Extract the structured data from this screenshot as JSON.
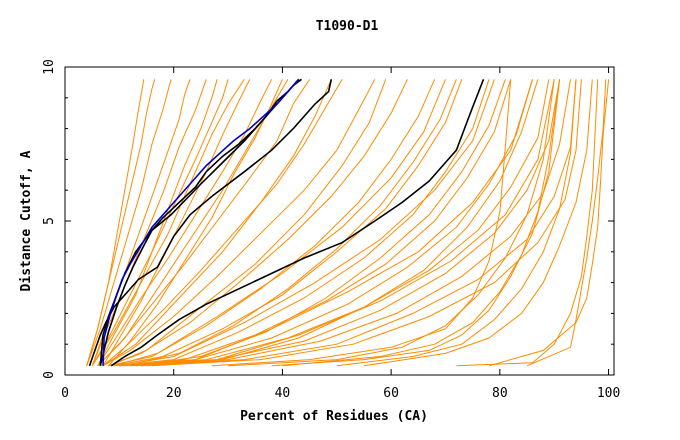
{
  "chart_data": {
    "type": "line",
    "title": "T1090-D1",
    "xlabel": "Percent of Residues (CA)",
    "ylabel": "Distance Cutoff, A",
    "xlim": [
      0,
      101
    ],
    "ylim": [
      0,
      10
    ],
    "x_ticks": [
      0,
      20,
      40,
      60,
      80,
      100
    ],
    "y_ticks": [
      0,
      5,
      10
    ],
    "grid": false,
    "legend": "none",
    "colors": {
      "models": "#ff8c00",
      "highlight_black": "#000000",
      "highlight_blue": "#0000cd"
    },
    "series": [
      {
        "color": "#ff8c00",
        "x": [
          4,
          6,
          8,
          10,
          12,
          14,
          15,
          16,
          16.5
        ],
        "y": [
          0.3,
          1.5,
          3,
          4.5,
          6,
          7.5,
          8.5,
          9.3,
          9.6
        ]
      },
      {
        "color": "#ff8c00",
        "x": [
          5,
          7,
          10,
          13,
          16,
          19,
          21,
          22,
          23
        ],
        "y": [
          0.3,
          1.3,
          2.8,
          4.3,
          5.8,
          7.3,
          8.3,
          9.1,
          9.6
        ]
      },
      {
        "color": "#ff8c00",
        "x": [
          5,
          8,
          12,
          16,
          20,
          24,
          27,
          29,
          30
        ],
        "y": [
          0.3,
          1.2,
          2.6,
          4,
          5.5,
          7,
          8.2,
          9,
          9.6
        ]
      },
      {
        "color": "#ff8c00",
        "x": [
          6,
          9,
          14,
          19,
          24,
          29,
          33,
          36,
          38
        ],
        "y": [
          0.3,
          1.1,
          2.5,
          3.8,
          5.2,
          6.6,
          7.8,
          8.9,
          9.6
        ]
      },
      {
        "color": "#ff8c00",
        "x": [
          6,
          10,
          16,
          22,
          28,
          34,
          39,
          42,
          45
        ],
        "y": [
          0.3,
          1.0,
          2.3,
          3.6,
          5,
          6.4,
          7.6,
          8.8,
          9.6
        ]
      },
      {
        "color": "#ff8c00",
        "x": [
          7,
          11,
          18,
          25,
          32,
          39,
          44,
          48,
          51
        ],
        "y": [
          0.3,
          0.9,
          2.1,
          3.4,
          4.8,
          6.2,
          7.5,
          8.7,
          9.6
        ]
      },
      {
        "color": "#ff8c00",
        "x": [
          7,
          12,
          20,
          28,
          36,
          44,
          50,
          54,
          57
        ],
        "y": [
          0.3,
          0.8,
          1.9,
          3.2,
          4.6,
          6,
          7.3,
          8.6,
          9.6
        ]
      },
      {
        "color": "#ff8c00",
        "x": [
          8,
          14,
          23,
          32,
          41,
          49,
          55,
          60,
          63
        ],
        "y": [
          0.3,
          0.7,
          1.7,
          3,
          4.4,
          5.8,
          7.1,
          8.5,
          9.6
        ]
      },
      {
        "color": "#ff8c00",
        "x": [
          8,
          16,
          26,
          36,
          46,
          54,
          60,
          65,
          68
        ],
        "y": [
          0.3,
          0.6,
          1.6,
          2.8,
          4.2,
          5.6,
          7,
          8.4,
          9.6
        ]
      },
      {
        "color": "#ff8c00",
        "x": [
          9,
          18,
          29,
          40,
          50,
          59,
          65,
          70,
          73
        ],
        "y": [
          0.3,
          0.6,
          1.5,
          2.6,
          4,
          5.4,
          6.8,
          8.2,
          9.6
        ]
      },
      {
        "color": "#ff8c00",
        "x": [
          9,
          20,
          32,
          44,
          55,
          64,
          70,
          75,
          78
        ],
        "y": [
          0.3,
          0.5,
          1.4,
          2.5,
          3.8,
          5.2,
          6.6,
          8,
          9.6
        ]
      },
      {
        "color": "#ff8c00",
        "x": [
          10,
          22,
          35,
          48,
          59,
          68,
          74,
          79,
          82
        ],
        "y": [
          0.3,
          0.5,
          1.3,
          2.4,
          3.6,
          5,
          6.4,
          7.9,
          9.6
        ]
      },
      {
        "color": "#ff8c00",
        "x": [
          10,
          24,
          38,
          52,
          63,
          72,
          78,
          83,
          86
        ],
        "y": [
          0.3,
          0.5,
          1.2,
          2.3,
          3.5,
          4.8,
          6.2,
          7.8,
          9.6
        ]
      },
      {
        "color": "#ff8c00",
        "x": [
          11,
          26,
          41,
          55,
          67,
          76,
          82,
          87,
          89
        ],
        "y": [
          0.3,
          0.5,
          1.2,
          2.2,
          3.4,
          4.7,
          6.1,
          7.7,
          9.6
        ]
      },
      {
        "color": "#ff8c00",
        "x": [
          12,
          28,
          44,
          58,
          70,
          79,
          85,
          89,
          91
        ],
        "y": [
          0.3,
          0.5,
          1.1,
          2.1,
          3.3,
          4.6,
          6,
          7.6,
          9.6
        ]
      },
      {
        "color": "#ff8c00",
        "x": [
          13,
          30,
          47,
          61,
          73,
          82,
          88,
          91,
          93
        ],
        "y": [
          0.3,
          0.5,
          1.1,
          2.0,
          3.2,
          4.5,
          5.9,
          7.5,
          9.6
        ]
      },
      {
        "color": "#ff8c00",
        "x": [
          14,
          33,
          50,
          64,
          76,
          85,
          90,
          93,
          94
        ],
        "y": [
          0.3,
          0.5,
          1.0,
          2.0,
          3.1,
          4.4,
          5.8,
          7.4,
          9.6
        ]
      },
      {
        "color": "#ff8c00",
        "x": [
          16,
          36,
          53,
          67,
          79,
          87,
          92,
          94,
          95
        ],
        "y": [
          0.3,
          0.5,
          1.0,
          1.9,
          3.0,
          4.3,
          5.7,
          7.3,
          9.6
        ]
      },
      {
        "color": "#ff8c00",
        "x": [
          5,
          9,
          14,
          19,
          23,
          27,
          30,
          33
        ],
        "y": [
          0.3,
          1.4,
          3,
          4.6,
          6.2,
          7.8,
          8.8,
          9.6
        ]
      },
      {
        "color": "#ff8c00",
        "x": [
          6,
          11,
          17,
          23,
          29,
          34,
          38,
          41
        ],
        "y": [
          0.3,
          1.2,
          2.8,
          4.4,
          6,
          7.5,
          8.7,
          9.6
        ]
      },
      {
        "color": "#ff8c00",
        "x": [
          7,
          13,
          21,
          29,
          36,
          42,
          46,
          49
        ],
        "y": [
          0.3,
          1.0,
          2.5,
          4.0,
          5.6,
          7.1,
          8.4,
          9.6
        ]
      },
      {
        "color": "#ff8c00",
        "x": [
          8,
          15,
          25,
          35,
          44,
          51,
          56,
          59
        ],
        "y": [
          0.3,
          0.8,
          2.2,
          3.6,
          5.2,
          6.8,
          8.2,
          9.6
        ]
      },
      {
        "color": "#ff8c00",
        "x": [
          9,
          17,
          28,
          40,
          51,
          60,
          66,
          70
        ],
        "y": [
          0.3,
          0.7,
          1.9,
          3.3,
          4.8,
          6.4,
          7.9,
          9.6
        ]
      },
      {
        "color": "#ff8c00",
        "x": [
          10,
          20,
          33,
          46,
          58,
          68,
          75,
          79
        ],
        "y": [
          0.3,
          0.6,
          1.7,
          3.0,
          4.4,
          6,
          7.6,
          9.6
        ]
      },
      {
        "color": "#ff8c00",
        "x": [
          12,
          24,
          38,
          52,
          65,
          75,
          82,
          86
        ],
        "y": [
          0.3,
          0.5,
          1.5,
          2.7,
          4.0,
          5.6,
          7.3,
          9.6
        ]
      },
      {
        "color": "#ff8c00",
        "x": [
          14,
          28,
          43,
          58,
          71,
          81,
          87,
          90
        ],
        "y": [
          0.3,
          0.5,
          1.3,
          2.4,
          3.7,
          5.2,
          7.0,
          9.6
        ]
      },
      {
        "color": "#ff8c00",
        "x": [
          4,
          6,
          8,
          9.5,
          11,
          12.5,
          13.5,
          14.5
        ],
        "y": [
          0.3,
          1.5,
          3,
          4.5,
          6,
          7.5,
          8.6,
          9.6
        ]
      },
      {
        "color": "#ff8c00",
        "x": [
          4,
          6.5,
          9,
          11.5,
          14,
          16,
          18,
          19.5
        ],
        "y": [
          0.3,
          1.5,
          3,
          4.5,
          6,
          7.5,
          8.6,
          9.6
        ]
      },
      {
        "color": "#ff8c00",
        "x": [
          5,
          7.5,
          11,
          14.5,
          18,
          21,
          24,
          26
        ],
        "y": [
          0.3,
          1.4,
          2.9,
          4.4,
          5.9,
          7.4,
          8.6,
          9.6
        ]
      },
      {
        "color": "#ff8c00",
        "x": [
          30,
          50,
          62,
          70,
          76,
          81,
          85,
          88,
          90
        ],
        "y": [
          0.3,
          0.5,
          0.9,
          1.6,
          2.6,
          3.8,
          5.2,
          7,
          9.6
        ]
      },
      {
        "color": "#ff8c00",
        "x": [
          40,
          58,
          68,
          75,
          80,
          84,
          87,
          89,
          91
        ],
        "y": [
          0.3,
          0.6,
          1.0,
          1.7,
          2.7,
          3.9,
          5.3,
          7.1,
          9.6
        ]
      },
      {
        "color": "#ff8c00",
        "x": [
          50,
          64,
          73,
          79,
          84,
          88,
          91,
          93,
          94
        ],
        "y": [
          0.3,
          0.6,
          1.0,
          1.8,
          2.8,
          4.0,
          5.4,
          7.2,
          9.6
        ]
      },
      {
        "color": "#ff8c00",
        "x": [
          27,
          45,
          60,
          70,
          75,
          78,
          80,
          81,
          82
        ],
        "y": [
          0.3,
          0.5,
          0.9,
          1.5,
          2.5,
          3.7,
          5.3,
          7.4,
          9.6
        ]
      },
      {
        "color": "#ff8c00",
        "x": [
          55,
          70,
          78,
          84,
          88,
          91,
          94,
          96,
          97
        ],
        "y": [
          0.3,
          0.7,
          1.2,
          2.0,
          3.0,
          4.2,
          5.6,
          7.3,
          9.6
        ]
      },
      {
        "color": "#ff8c00",
        "x": [
          72,
          86,
          90,
          93,
          95,
          96,
          97,
          97.5,
          98
        ],
        "y": [
          0.3,
          0.4,
          1.0,
          2.0,
          3.2,
          4.5,
          6.0,
          7.8,
          9.6
        ]
      },
      {
        "color": "#ff8c00",
        "x": [
          85,
          93,
          94,
          95,
          96,
          97,
          98,
          99,
          99.5
        ],
        "y": [
          0.3,
          0.9,
          1.8,
          2.8,
          3.8,
          5.0,
          6.4,
          8,
          9.6
        ]
      },
      {
        "color": "#ff8c00",
        "x": [
          78,
          88,
          94,
          96,
          97,
          98,
          98.5,
          99,
          100
        ],
        "y": [
          0.3,
          0.8,
          1.7,
          2.5,
          3.6,
          4.8,
          6.2,
          7.8,
          9.6
        ]
      },
      {
        "color": "#ff8c00",
        "x": [
          38,
          55,
          67,
          73,
          78,
          82,
          86,
          89,
          91
        ],
        "y": [
          0.3,
          0.5,
          0.8,
          1.3,
          2.1,
          3.2,
          4.6,
          6.6,
          9.6
        ]
      },
      {
        "color": "#ff8c00",
        "x": [
          7,
          10,
          14,
          18,
          22,
          26,
          29,
          32,
          34
        ],
        "y": [
          0.3,
          1.2,
          2.4,
          3.8,
          5.2,
          6.6,
          7.8,
          8.9,
          9.6
        ]
      },
      {
        "color": "#ff8c00",
        "x": [
          8,
          12,
          17,
          22,
          27,
          31,
          35,
          38,
          40
        ],
        "y": [
          0.3,
          1.1,
          2.3,
          3.7,
          5.1,
          6.5,
          7.7,
          8.8,
          9.6
        ]
      },
      {
        "color": "#ff8c00",
        "x": [
          6,
          9,
          13,
          16,
          19,
          22,
          25,
          27,
          28
        ],
        "y": [
          0.3,
          1.3,
          2.6,
          4.0,
          5.4,
          6.8,
          8,
          9,
          9.6
        ]
      },
      {
        "color": "#ff8c00",
        "x": [
          11,
          21,
          31,
          41,
          50,
          58,
          64,
          69,
          72
        ],
        "y": [
          0.3,
          0.7,
          1.6,
          2.8,
          4.1,
          5.5,
          6.9,
          8.3,
          9.6
        ]
      },
      {
        "color": "#ff8c00",
        "x": [
          13,
          25,
          37,
          48,
          58,
          67,
          73,
          78,
          81
        ],
        "y": [
          0.3,
          0.6,
          1.4,
          2.5,
          3.8,
          5.2,
          6.6,
          8.1,
          9.6
        ]
      },
      {
        "color": "#ff8c00",
        "x": [
          15,
          29,
          43,
          55,
          66,
          74,
          80,
          84,
          87
        ],
        "y": [
          0.3,
          0.5,
          1.2,
          2.2,
          3.4,
          4.8,
          6.3,
          7.9,
          9.6
        ]
      },
      {
        "color": "#000000",
        "x": [
          6.5,
          7,
          8,
          9.5,
          11,
          13,
          16,
          19.5,
          25,
          29,
          33,
          36.5,
          38.5,
          40,
          42,
          43.5
        ],
        "y": [
          0.3,
          1.3,
          1.9,
          2.6,
          3.3,
          4.0,
          4.7,
          5.2,
          6.2,
          6.9,
          7.6,
          8.3,
          8.7,
          9.0,
          9.4,
          9.6
        ]
      },
      {
        "color": "#000000",
        "x": [
          4.5,
          5.5,
          6.5,
          7.5,
          9,
          11,
          13.5,
          17,
          20,
          23,
          27,
          33,
          38,
          42,
          46,
          48.5,
          49
        ],
        "y": [
          0.3,
          0.8,
          1.3,
          1.7,
          2.2,
          2.6,
          3.1,
          3.5,
          4.5,
          5.2,
          5.8,
          6.6,
          7.3,
          8.0,
          8.8,
          9.2,
          9.6
        ]
      },
      {
        "color": "#000000",
        "x": [
          8.5,
          11,
          14,
          17,
          21,
          26,
          32,
          38,
          44,
          51,
          57,
          62,
          67,
          70,
          72,
          73.5,
          75,
          77
        ],
        "y": [
          0.3,
          0.6,
          0.9,
          1.3,
          1.8,
          2.3,
          2.8,
          3.3,
          3.8,
          4.3,
          5.0,
          5.6,
          6.3,
          6.9,
          7.3,
          8.0,
          8.7,
          9.6
        ]
      },
      {
        "color": "#000000",
        "x": [
          6.5,
          8,
          9.5,
          11,
          12.5,
          14.5,
          16,
          18,
          21,
          24,
          26,
          29,
          32,
          35,
          37,
          39,
          41,
          43
        ],
        "y": [
          0.3,
          1.4,
          2.2,
          2.9,
          3.5,
          4.2,
          4.7,
          5.1,
          5.6,
          6.1,
          6.6,
          7.1,
          7.5,
          8.0,
          8.4,
          8.9,
          9.2,
          9.6
        ]
      },
      {
        "color": "#0000cd",
        "x": [
          7,
          7.2,
          8.2,
          9.3,
          10.5,
          12,
          14,
          16,
          18.5,
          21,
          23.5,
          26,
          28.5,
          31,
          34,
          36.5,
          39,
          41,
          43
        ],
        "y": [
          0.3,
          1.2,
          1.9,
          2.5,
          3.1,
          3.6,
          4.2,
          4.8,
          5.3,
          5.8,
          6.3,
          6.8,
          7.2,
          7.6,
          8.0,
          8.4,
          8.8,
          9.2,
          9.6
        ]
      }
    ]
  }
}
